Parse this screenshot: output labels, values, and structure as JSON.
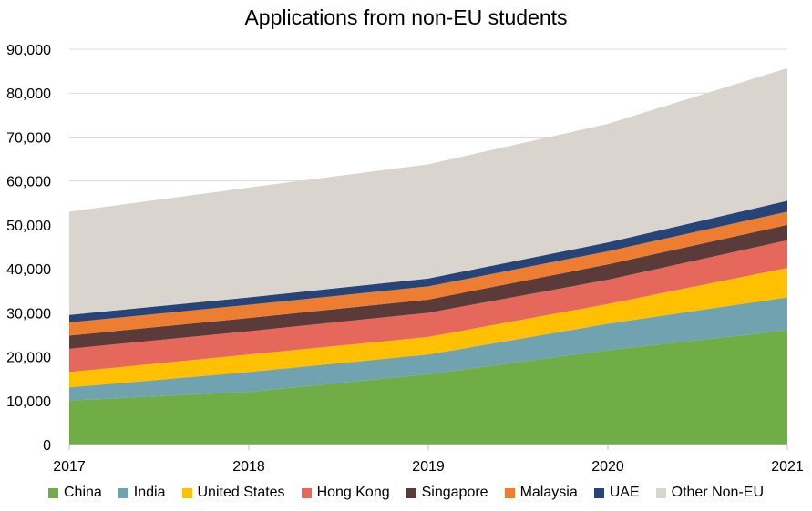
{
  "chart_data": {
    "type": "area",
    "stacked": true,
    "title": "Applications from non-EU students",
    "xlabel": "",
    "ylabel": "",
    "categories": [
      "2017",
      "2018",
      "2019",
      "2020",
      "2021"
    ],
    "ylim": [
      0,
      90000
    ],
    "yticks": [
      0,
      10000,
      20000,
      30000,
      40000,
      50000,
      60000,
      70000,
      80000,
      90000
    ],
    "ytick_labels": [
      "0",
      "10,000",
      "20,000",
      "30,000",
      "40,000",
      "50,000",
      "60,000",
      "70,000",
      "80,000",
      "90,000"
    ],
    "grid": true,
    "legend_position": "bottom",
    "series": [
      {
        "name": "China",
        "color": "#70AD47",
        "values": [
          10000,
          12000,
          16000,
          21500,
          26000
        ]
      },
      {
        "name": "India",
        "color": "#71A2B0",
        "values": [
          3000,
          4500,
          4500,
          6000,
          7500
        ]
      },
      {
        "name": "United States",
        "color": "#FFC000",
        "values": [
          3500,
          4000,
          4000,
          4500,
          6700
        ]
      },
      {
        "name": "Hong Kong",
        "color": "#E6675B",
        "values": [
          5300,
          5300,
          5500,
          5500,
          6300
        ]
      },
      {
        "name": "Singapore",
        "color": "#5B3A3A",
        "values": [
          3000,
          3000,
          3000,
          3500,
          3500
        ]
      },
      {
        "name": "Malaysia",
        "color": "#ED7D31",
        "values": [
          3000,
          3000,
          3000,
          3000,
          3000
        ]
      },
      {
        "name": "UAE",
        "color": "#264478",
        "values": [
          1700,
          1700,
          1800,
          2000,
          2500
        ]
      },
      {
        "name": "Other Non-EU",
        "color": "#D9D4CE",
        "values": [
          23500,
          25000,
          26000,
          27000,
          30200
        ]
      }
    ]
  }
}
